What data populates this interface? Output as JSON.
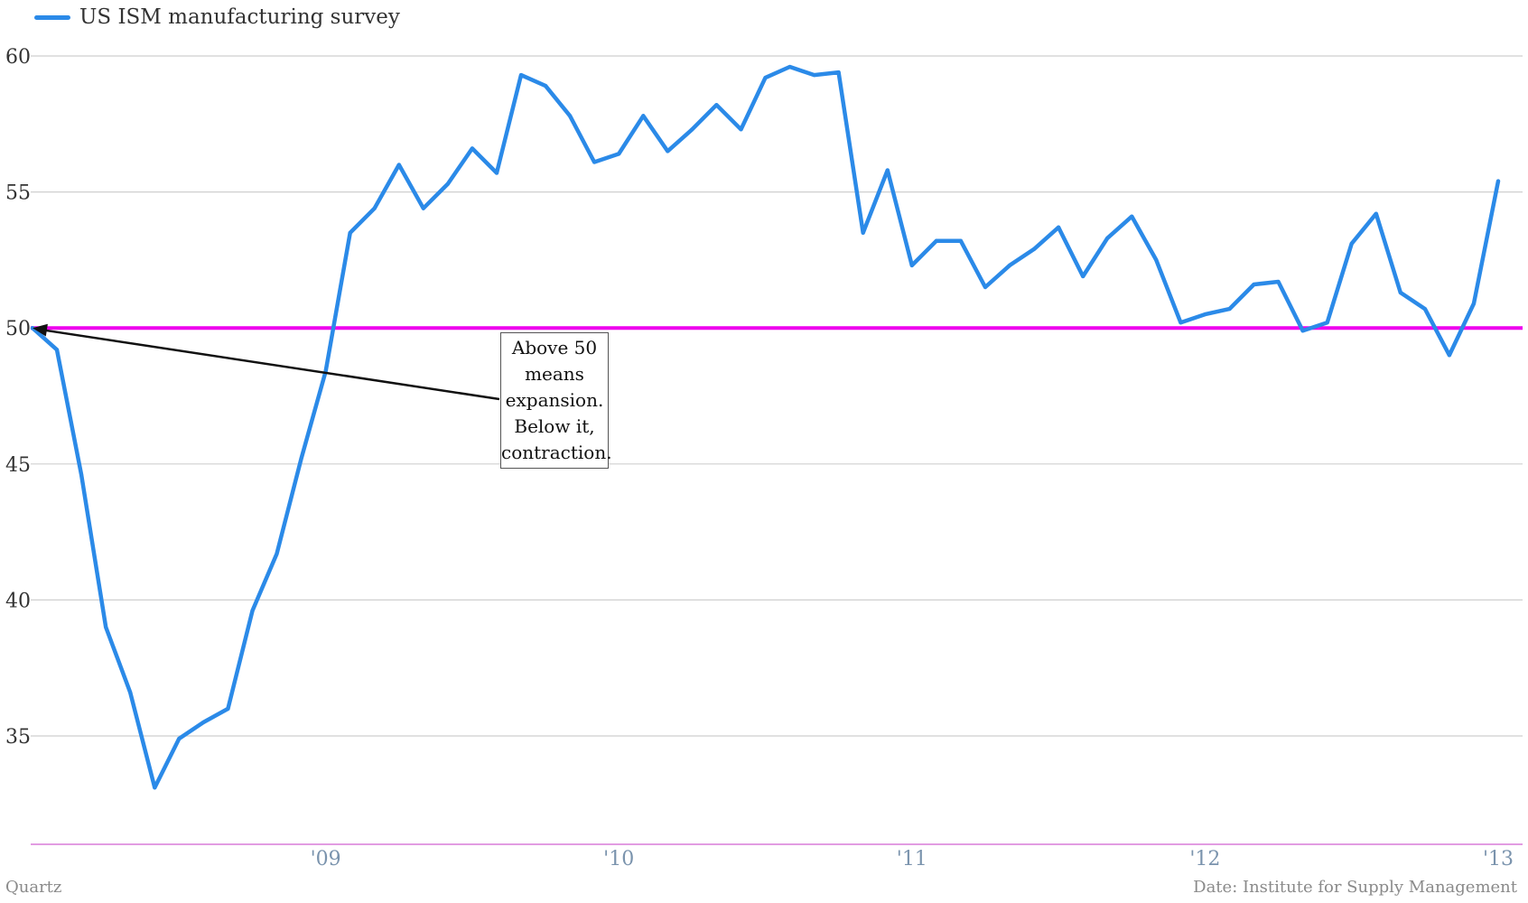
{
  "legend": {
    "series_label": "US ISM manufacturing survey"
  },
  "annotation": {
    "lines": [
      "Above 50",
      "means",
      "expansion.",
      "Below it,",
      "contraction."
    ]
  },
  "footer": {
    "left": "Quartz",
    "right": "Date: Institute for Supply Management"
  },
  "colors": {
    "series": "#2b8ae8",
    "threshold": "#ee00ee",
    "grid": "#cfcfcf",
    "xaxis_line": "#d87bd8",
    "y_tick_text": "#333333",
    "x_tick_text": "#7a93ad"
  },
  "chart_data": {
    "type": "line",
    "title": "",
    "xlabel": "",
    "ylabel": "",
    "grid": true,
    "legend_position": "top-left",
    "ylim": [
      31,
      61
    ],
    "y_ticks": [
      35,
      40,
      45,
      50,
      55,
      60
    ],
    "x_ticks": [
      {
        "label": "'09",
        "date": "2009-01"
      },
      {
        "label": "'10",
        "date": "2010-01"
      },
      {
        "label": "'11",
        "date": "2011-01"
      },
      {
        "label": "'12",
        "date": "2012-01"
      },
      {
        "label": "'13",
        "date": "2013-01"
      }
    ],
    "reference_line": {
      "y": 50
    },
    "series": [
      {
        "name": "US ISM manufacturing survey",
        "x": [
          "2008-01",
          "2008-02",
          "2008-03",
          "2008-04",
          "2008-05",
          "2008-06",
          "2008-07",
          "2008-08",
          "2008-09",
          "2008-10",
          "2008-11",
          "2008-12",
          "2009-01",
          "2009-02",
          "2009-03",
          "2009-04",
          "2009-05",
          "2009-06",
          "2009-07",
          "2009-08",
          "2009-09",
          "2009-10",
          "2009-11",
          "2009-12",
          "2010-01",
          "2010-02",
          "2010-03",
          "2010-04",
          "2010-05",
          "2010-06",
          "2010-07",
          "2010-08",
          "2010-09",
          "2010-10",
          "2010-11",
          "2010-12",
          "2011-01",
          "2011-02",
          "2011-03",
          "2011-04",
          "2011-05",
          "2011-06",
          "2011-07",
          "2011-08",
          "2011-09",
          "2011-10",
          "2011-11",
          "2011-12",
          "2012-01",
          "2012-02",
          "2012-03",
          "2012-04",
          "2012-05",
          "2012-06",
          "2012-07",
          "2012-08",
          "2012-09",
          "2012-10",
          "2012-11",
          "2012-12",
          "2013-01"
        ],
        "values": [
          50.0,
          49.2,
          44.6,
          39.0,
          36.6,
          33.1,
          34.9,
          35.5,
          36.0,
          39.6,
          41.7,
          45.2,
          48.4,
          53.5,
          54.4,
          56.0,
          54.4,
          55.3,
          56.6,
          55.7,
          59.3,
          58.9,
          57.8,
          56.1,
          56.4,
          57.8,
          56.5,
          57.3,
          58.2,
          57.3,
          59.2,
          59.6,
          59.3,
          59.4,
          53.5,
          55.8,
          52.3,
          53.2,
          53.2,
          51.5,
          52.3,
          52.9,
          53.7,
          51.9,
          53.3,
          54.1,
          52.5,
          50.2,
          50.5,
          50.7,
          51.6,
          51.7,
          49.9,
          50.2,
          53.1,
          54.2,
          51.3,
          50.7,
          49.0,
          50.9,
          55.4
        ]
      }
    ]
  }
}
